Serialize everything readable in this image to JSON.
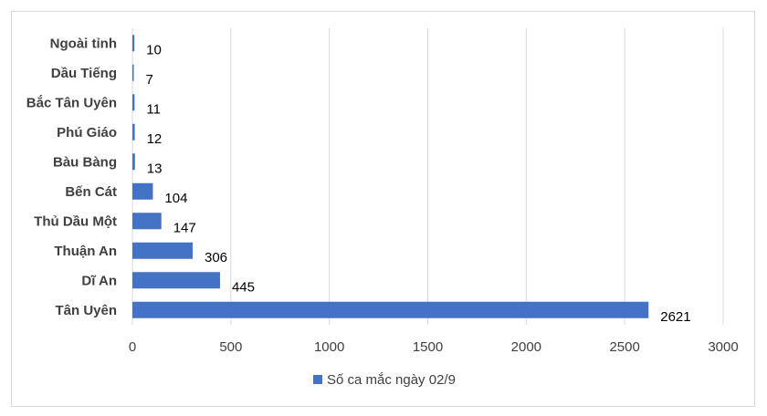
{
  "chart_data": {
    "type": "bar",
    "orientation": "horizontal",
    "categories": [
      "Tân Uyên",
      "Dĩ An",
      "Thuận An",
      "Thủ Dầu Một",
      "Bến Cát",
      "Bàu Bàng",
      "Phú Giáo",
      "Bắc Tân Uyên",
      "Dầu Tiếng",
      "Ngoài tỉnh"
    ],
    "series": [
      {
        "name": "Số ca mắc ngày 02/9",
        "values": [
          2621,
          445,
          306,
          147,
          104,
          13,
          12,
          11,
          7,
          10
        ],
        "color": "#4472c4"
      }
    ],
    "xlim": [
      0,
      3000
    ],
    "xticks": [
      0,
      500,
      1000,
      1500,
      2000,
      2500,
      3000
    ],
    "grid": "vertical",
    "legend_position": "bottom",
    "data_labels": true
  }
}
